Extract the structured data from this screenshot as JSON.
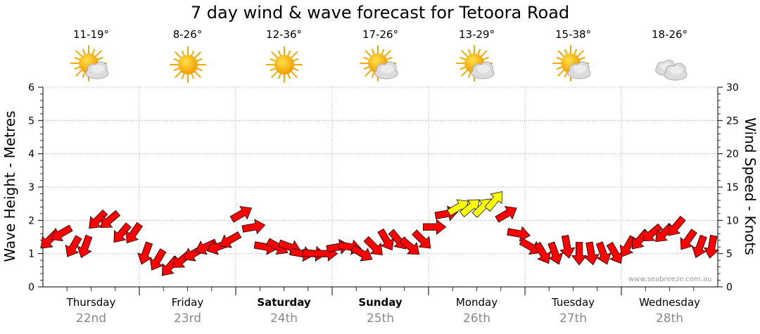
{
  "title": "7 day wind & wave forecast for Tetoora Road",
  "days": [
    {
      "name": "Thursday",
      "date": "22nd",
      "temp": "11-19°",
      "icon": "partly-cloudy-icon",
      "bold": false
    },
    {
      "name": "Friday",
      "date": "23rd",
      "temp": "8-26°",
      "icon": "sunny-icon",
      "bold": false
    },
    {
      "name": "Saturday",
      "date": "24th",
      "temp": "12-36°",
      "icon": "sunny-icon",
      "bold": true
    },
    {
      "name": "Sunday",
      "date": "25th",
      "temp": "17-26°",
      "icon": "partly-cloudy-icon",
      "bold": true
    },
    {
      "name": "Monday",
      "date": "26th",
      "temp": "13-29°",
      "icon": "partly-cloudy-icon",
      "bold": false
    },
    {
      "name": "Tuesday",
      "date": "27th",
      "temp": "15-38°",
      "icon": "partly-cloudy-icon",
      "bold": false
    },
    {
      "name": "Wednesday",
      "date": "28th",
      "temp": "18-26°",
      "icon": "cloudy-icon",
      "bold": false
    }
  ],
  "watermark": "www.seabreeze.com.au",
  "colors": {
    "strong_wind": "#ff0000",
    "light_wind": "#ffff00",
    "arrow_outline": "#000000",
    "grid": "#999999"
  },
  "chart_data": {
    "type": "line",
    "y_left": {
      "label": "Wave Height - Metres",
      "range": [
        0,
        6
      ],
      "ticks": [
        0,
        1,
        2,
        3,
        4,
        5,
        6
      ]
    },
    "y_right": {
      "label": "Wind Speed - Knots",
      "range": [
        0,
        30
      ],
      "ticks": [
        0,
        5,
        10,
        15,
        20,
        25,
        30
      ]
    },
    "x_categories": [
      "Thursday 22nd",
      "Friday 23rd",
      "Saturday 24th",
      "Sunday 25th",
      "Monday 26th",
      "Tuesday 27th",
      "Wednesday 28th"
    ],
    "grid": true,
    "series": [
      {
        "units": "knots",
        "samples_per_day": 8,
        "wind_speed": [
          7,
          8,
          6,
          6,
          10,
          10,
          8,
          8,
          5,
          4,
          3,
          4,
          5,
          6,
          6,
          7,
          11,
          9,
          6,
          6,
          6,
          5,
          5,
          5,
          6,
          6,
          5,
          6,
          7,
          7,
          6,
          7,
          9,
          11,
          12,
          12,
          12,
          13,
          11,
          8,
          6,
          5,
          5,
          6,
          5,
          5,
          5,
          5,
          6,
          7,
          8,
          8,
          9,
          7,
          6,
          6
        ],
        "wind_direction_deg": [
          225,
          240,
          210,
          200,
          225,
          230,
          220,
          215,
          200,
          210,
          220,
          230,
          240,
          245,
          250,
          240,
          60,
          80,
          100,
          120,
          110,
          100,
          95,
          90,
          80,
          100,
          120,
          135,
          150,
          140,
          130,
          135,
          90,
          80,
          60,
          50,
          45,
          40,
          60,
          100,
          120,
          150,
          160,
          170,
          180,
          170,
          160,
          150,
          210,
          220,
          230,
          225,
          220,
          215,
          200,
          190
        ]
      }
    ]
  }
}
